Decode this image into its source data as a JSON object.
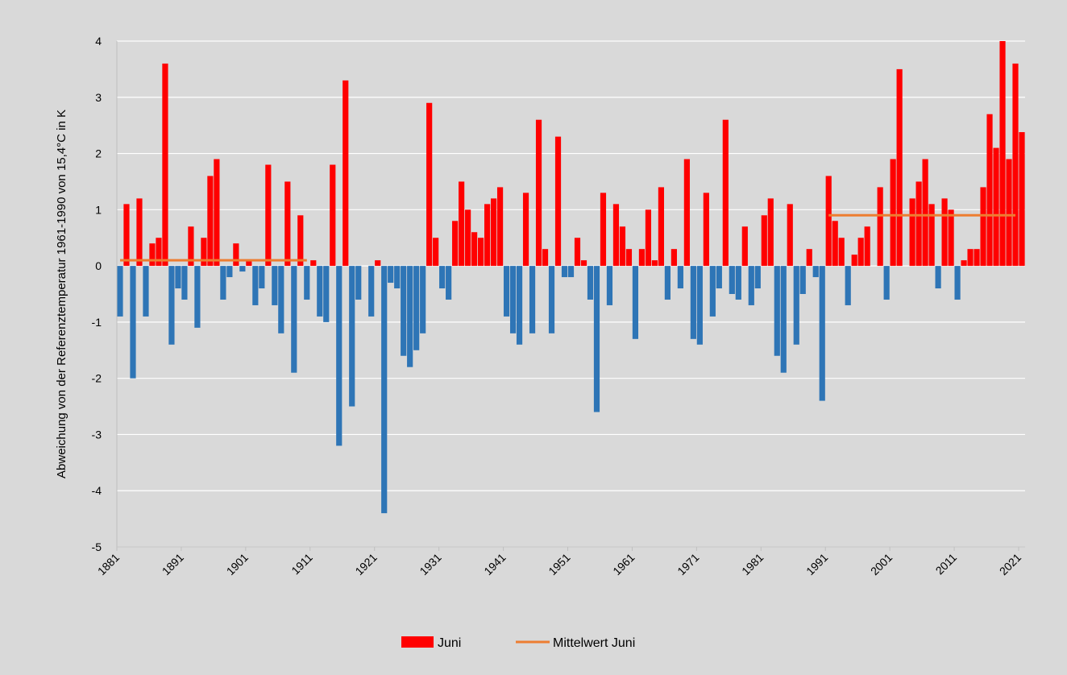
{
  "chart_data": {
    "type": "bar",
    "title": "",
    "ylabel": "Abweichung von der Referenztemperatur 1961-1990 von 15,4°C in K",
    "xlabel": "",
    "ylim": [
      -5,
      4
    ],
    "yticks": [
      "4",
      "3",
      "2",
      "1",
      "0",
      "-1",
      "-2",
      "-3",
      "-4",
      "-5"
    ],
    "xtick_years": [
      1881,
      1891,
      1901,
      1911,
      1921,
      1931,
      1941,
      1951,
      1961,
      1971,
      1981,
      1991,
      2001,
      2011,
      2021
    ],
    "start_year": 1881,
    "grid": true,
    "legend_position": "bottom",
    "colors": {
      "positive": "#ff0000",
      "negative": "#2e75b6",
      "mean": "#ed7d31"
    },
    "series": [
      {
        "name": "Juni",
        "values": [
          -0.9,
          1.1,
          -2.0,
          1.2,
          -0.9,
          0.4,
          0.5,
          3.6,
          -1.4,
          -0.4,
          -0.6,
          0.7,
          -1.1,
          0.5,
          1.6,
          1.9,
          -0.6,
          -0.2,
          0.4,
          -0.1,
          0.1,
          -0.7,
          -0.4,
          1.8,
          -0.7,
          -1.2,
          1.5,
          -1.9,
          0.9,
          -0.6,
          0.1,
          -0.9,
          -1.0,
          1.8,
          -3.2,
          3.3,
          -2.5,
          -0.6,
          0.0,
          -0.9,
          0.1,
          -4.4,
          -0.3,
          -0.4,
          -1.6,
          -1.8,
          -1.5,
          -1.2,
          2.9,
          0.5,
          -0.4,
          -0.6,
          0.8,
          1.5,
          1.0,
          0.6,
          0.5,
          1.1,
          1.2,
          1.4,
          -0.9,
          -1.2,
          -1.4,
          1.3,
          -1.2,
          2.6,
          0.3,
          -1.2,
          2.3,
          -0.2,
          -0.2,
          0.5,
          0.1,
          -0.6,
          -2.6,
          1.3,
          -0.7,
          1.1,
          0.7,
          0.3,
          -1.3,
          0.3,
          1.0,
          0.1,
          1.4,
          -0.6,
          0.3,
          -0.4,
          1.9,
          -1.3,
          -1.4,
          1.3,
          -0.9,
          -0.4,
          2.6,
          -0.5,
          -0.6,
          0.7,
          -0.7,
          -0.4,
          0.9,
          1.2,
          -1.6,
          -1.9,
          1.1,
          -1.4,
          -0.5,
          0.3,
          -0.2,
          -2.4,
          1.6,
          0.8,
          0.5,
          -0.7,
          0.2,
          0.5,
          0.7,
          0.0,
          1.4,
          -0.6,
          1.9,
          3.5,
          0.0,
          1.2,
          1.5,
          1.9,
          1.1,
          -0.4,
          1.2,
          1.0,
          -0.6,
          0.1,
          0.3,
          0.3,
          1.4,
          2.7,
          2.1,
          4.0,
          1.9,
          3.6,
          2.38
        ]
      },
      {
        "name": "Mittelwert Juni",
        "segments": [
          {
            "from": 1881,
            "to": 1910,
            "value": 0.1
          },
          {
            "from": 1991,
            "to": 2020,
            "value": 0.9
          }
        ]
      }
    ]
  }
}
